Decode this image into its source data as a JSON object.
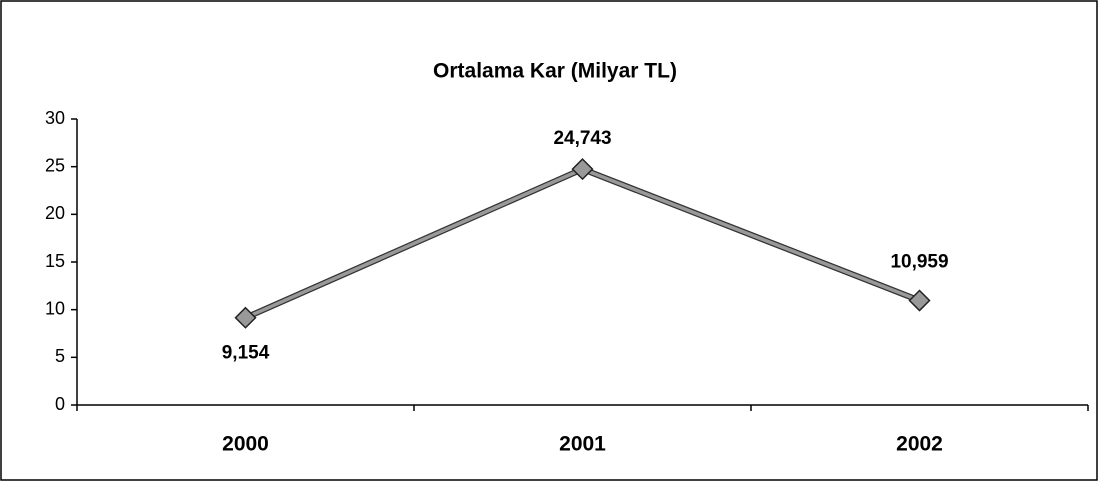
{
  "chart_data": {
    "type": "line",
    "title": "Ortalama Kar (Milyar TL)",
    "categories": [
      "2000",
      "2001",
      "2002"
    ],
    "series": [
      {
        "name": "Ortalama Kar",
        "color": "#999999",
        "values": [
          9.154,
          24.743,
          10.959
        ],
        "value_labels": [
          "9,154",
          "24,743",
          "10,959"
        ]
      }
    ],
    "ylim": [
      0,
      30
    ],
    "yticks": [
      0,
      5,
      10,
      15,
      20,
      25,
      30
    ],
    "grid": false
  }
}
